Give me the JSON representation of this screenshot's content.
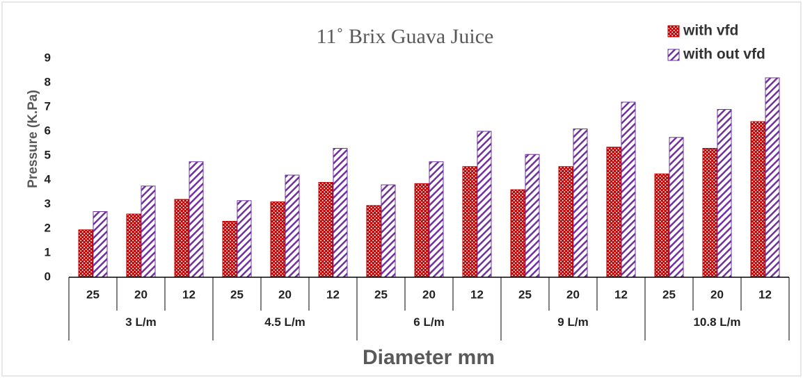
{
  "chart_data": {
    "type": "bar",
    "title": "11˚ Brix Guava Juice",
    "x_label": "Diameter mm",
    "y_label": "Pressure (K.Pa)",
    "categories": [
      "25",
      "20",
      "12",
      "25",
      "20",
      "12",
      "25",
      "20",
      "12",
      "25",
      "20",
      "12",
      "25",
      "20",
      "12"
    ],
    "category_groups": [
      "3 L/m",
      "4.5 L/m",
      "6 L/m",
      "9 L/m",
      "10.8 L/m"
    ],
    "series": [
      {
        "name": "with vfd",
        "color": "#c00000",
        "values": [
          1.95,
          2.6,
          3.2,
          2.3,
          3.1,
          3.9,
          2.95,
          3.85,
          4.55,
          3.6,
          4.55,
          5.35,
          4.25,
          5.3,
          6.4
        ]
      },
      {
        "name": "with out vfd",
        "color": "#7030a0",
        "values": [
          2.7,
          3.75,
          4.75,
          3.15,
          4.2,
          5.3,
          3.8,
          4.75,
          6.0,
          5.05,
          6.1,
          7.2,
          5.75,
          6.9,
          8.2
        ]
      }
    ],
    "ylim": [
      0,
      9
    ],
    "yticks": [
      0,
      1,
      2,
      3,
      4,
      5,
      6,
      7,
      8,
      9
    ],
    "grid": false,
    "legend": "top-right"
  }
}
